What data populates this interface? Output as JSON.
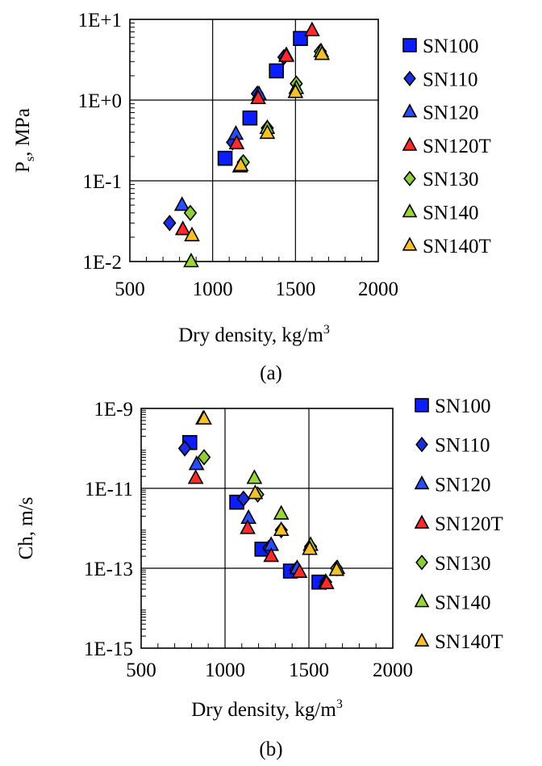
{
  "legend_series": [
    {
      "name": "SN100",
      "marker": "square",
      "color": "#0a1eff"
    },
    {
      "name": "SN110",
      "marker": "diamond",
      "color": "#1a2ee0"
    },
    {
      "name": "SN120",
      "marker": "triangle",
      "color": "#2a4cff"
    },
    {
      "name": "SN120T",
      "marker": "triangle",
      "color": "#ff2a2a"
    },
    {
      "name": "SN130",
      "marker": "diamond",
      "color": "#8ccf3a"
    },
    {
      "name": "SN140",
      "marker": "triangle",
      "color": "#9ad63a"
    },
    {
      "name": "SN140T",
      "marker": "triangle",
      "color": "#f5c02a"
    }
  ],
  "chart_data": [
    {
      "type": "scatter",
      "caption": "(a)",
      "xlabel": "Dry density, kg/m",
      "xlabel_sup": "3",
      "ylabel": "P",
      "ylabel_sub": "s",
      "ylabel_rest": ", MPa",
      "xscale": "linear",
      "yscale": "log",
      "xlim": [
        500,
        2000
      ],
      "ylim_exp": [
        -2,
        1
      ],
      "x_ticks": [
        500,
        1000,
        1500,
        2000
      ],
      "x_tick_labels": [
        "500",
        "1000",
        "1500",
        "2000"
      ],
      "y_tick_exps": [
        -2,
        -1,
        0,
        1
      ],
      "y_tick_labels": [
        "1E-2",
        "1E-1",
        "1E+0",
        "1E+1"
      ],
      "grid": true,
      "legend_position": "right",
      "series": [
        {
          "name": "SN100",
          "points": [
            [
              1075,
              0.19
            ],
            [
              1225,
              0.6
            ],
            [
              1385,
              2.3
            ],
            [
              1530,
              5.8
            ]
          ]
        },
        {
          "name": "SN110",
          "points": [
            [
              740,
              0.03
            ],
            [
              1120,
              0.3
            ],
            [
              1270,
              1.2
            ],
            [
              1430,
              3.4
            ]
          ]
        },
        {
          "name": "SN120",
          "points": [
            [
              815,
              0.05
            ],
            [
              1140,
              0.38
            ],
            [
              1280,
              1.18
            ],
            [
              1445,
              3.6
            ]
          ]
        },
        {
          "name": "SN120T",
          "points": [
            [
              820,
              0.025
            ],
            [
              1145,
              0.29
            ],
            [
              1275,
              1.05
            ],
            [
              1445,
              3.5
            ],
            [
              1600,
              7.3
            ]
          ]
        },
        {
          "name": "SN130",
          "points": [
            [
              865,
              0.04
            ],
            [
              1185,
              0.17
            ],
            [
              1330,
              0.45
            ],
            [
              1505,
              1.6
            ],
            [
              1650,
              4.0
            ]
          ]
        },
        {
          "name": "SN140",
          "points": [
            [
              870,
              0.01
            ],
            [
              1165,
              0.15
            ],
            [
              1330,
              0.45
            ],
            [
              1505,
              1.4
            ],
            [
              1655,
              4.0
            ]
          ]
        },
        {
          "name": "SN140T",
          "points": [
            [
              875,
              0.021
            ],
            [
              1170,
              0.155
            ],
            [
              1330,
              0.39
            ],
            [
              1500,
              1.25
            ],
            [
              1660,
              3.7
            ]
          ]
        }
      ]
    },
    {
      "type": "scatter",
      "caption": "(b)",
      "xlabel": "Dry density, kg/m",
      "xlabel_sup": "3",
      "ylabel": "Ch, m/s",
      "xscale": "linear",
      "yscale": "log",
      "xlim": [
        500,
        2000
      ],
      "ylim_exp": [
        -15,
        -9
      ],
      "x_ticks": [
        500,
        1000,
        1500,
        2000
      ],
      "x_tick_labels": [
        "500",
        "1000",
        "1500",
        "2000"
      ],
      "y_tick_exps": [
        -15,
        -13,
        -11,
        -9
      ],
      "y_tick_labels": [
        "1E-15",
        "1E-13",
        "1E-11",
        "1E-9"
      ],
      "grid": true,
      "legend_position": "right",
      "series": [
        {
          "name": "SN100",
          "points": [
            [
              790,
              1.4e-10
            ],
            [
              1070,
              4.5e-12
            ],
            [
              1220,
              3e-13
            ],
            [
              1390,
              8.5e-14
            ],
            [
              1560,
              4.5e-14
            ]
          ]
        },
        {
          "name": "SN110",
          "points": [
            [
              760,
              1e-10
            ],
            [
              1110,
              5.5e-12
            ],
            [
              1260,
              3.2e-13
            ],
            [
              1420,
              9e-14
            ],
            [
              1600,
              4.5e-14
            ]
          ]
        },
        {
          "name": "SN120",
          "points": [
            [
              830,
              4e-11
            ],
            [
              1140,
              1.8e-12
            ],
            [
              1275,
              3.8e-13
            ],
            [
              1430,
              1e-13
            ],
            [
              1600,
              4.5e-14
            ]
          ]
        },
        {
          "name": "SN120T",
          "points": [
            [
              825,
              1.8e-11
            ],
            [
              1135,
              1e-12
            ],
            [
              1275,
              2e-13
            ],
            [
              1445,
              8e-14
            ],
            [
              1605,
              4.2e-14
            ]
          ]
        },
        {
          "name": "SN130",
          "points": [
            [
              875,
              6e-11
            ],
            [
              1195,
              7e-12
            ],
            [
              1335,
              9e-13
            ],
            [
              1510,
              3.5e-13
            ],
            [
              1665,
              1e-13
            ]
          ]
        },
        {
          "name": "SN140",
          "points": [
            [
              870,
              5.5e-10
            ],
            [
              1175,
              1.8e-11
            ],
            [
              1335,
              2.3e-12
            ],
            [
              1510,
              3.8e-13
            ],
            [
              1670,
              1e-13
            ]
          ]
        },
        {
          "name": "SN140T",
          "points": [
            [
              875,
              5.5e-10
            ],
            [
              1180,
              7.5e-12
            ],
            [
              1335,
              9e-13
            ],
            [
              1505,
              3e-13
            ],
            [
              1665,
              9e-14
            ]
          ]
        }
      ]
    }
  ]
}
